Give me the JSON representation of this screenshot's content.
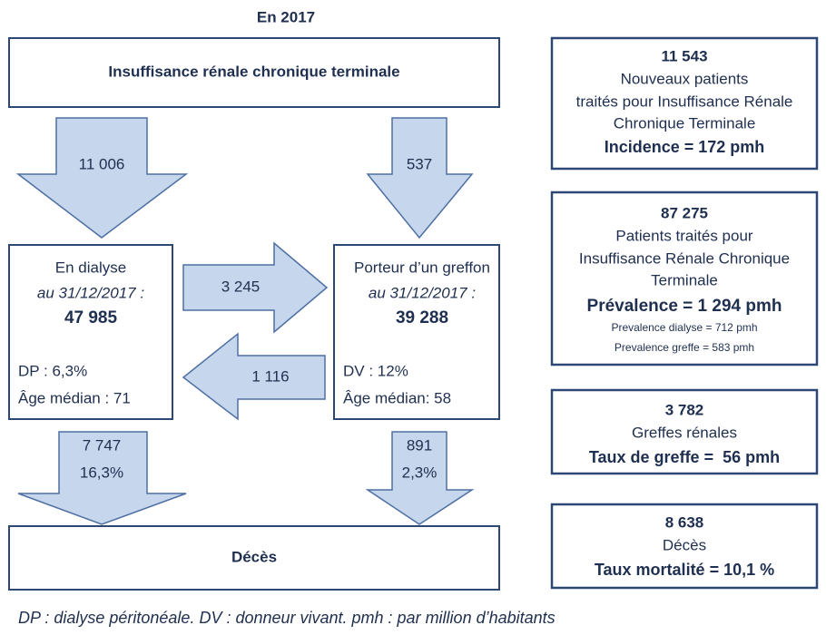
{
  "title": "En 2017",
  "top_box": {
    "label": "Insuffisance rénale chronique terminale"
  },
  "arrows": {
    "to_dialysis": "11 006",
    "to_graft": "537",
    "dialysis_to_graft": "3 245",
    "graft_to_dialysis": "1 116",
    "dialysis_deaths": {
      "count": "7 747",
      "percent": "16,3%"
    },
    "graft_deaths": {
      "count": "891",
      "percent": "2,3%"
    }
  },
  "dialysis_box": {
    "title": "En dialyse",
    "date": "au 31/12/2017 :",
    "count": "47 985",
    "dp": "DP : 6,3%",
    "age": "Âge médian : 71"
  },
  "graft_box": {
    "title": "Porteur d’un greffon",
    "date": "au 31/12/2017 :",
    "count": "39 288",
    "dv": "DV : 12%",
    "age": "Âge médian: 58"
  },
  "deaths_box": {
    "label": "Décès"
  },
  "side_boxes": [
    {
      "lines": [
        "11 543",
        "Nouveaux patients",
        "traités pour Insuffisance Rénale",
        "Chronique Terminale",
        "Incidence = 172 pmh"
      ]
    },
    {
      "lines": [
        "87 275",
        "Patients traités pour",
        "Insuffisance Rénale Chronique",
        "Terminale",
        "Prévalence = 1 294 pmh",
        "Prevalence dialyse = 712 pmh",
        "Prevalence greffe = 583 pmh"
      ]
    },
    {
      "lines": [
        "3 782",
        "Greffes rénales",
        "Taux de greffe =  56 pmh"
      ]
    },
    {
      "lines": [
        "8 638",
        "Décès",
        "Taux mortalité = 10,1 %"
      ]
    }
  ],
  "footnote": "DP : dialyse péritonéale. DV : donneur vivant. pmh : par million d’habitants"
}
